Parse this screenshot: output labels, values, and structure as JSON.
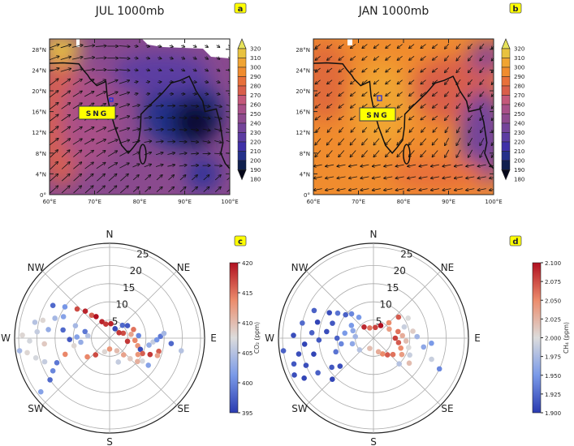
{
  "panels": {
    "a": {
      "title": "JUL 1000mb",
      "letter": "a",
      "site_label": "SNG"
    },
    "b": {
      "title": "JAN 1000mb",
      "letter": "b",
      "site_label": "SNG"
    },
    "c": {
      "letter": "c"
    },
    "d": {
      "letter": "d"
    }
  },
  "map_axes": {
    "lat_ticks": [
      "0°",
      "4°N",
      "8°N",
      "12°N",
      "16°N",
      "20°N",
      "24°N",
      "28°N"
    ],
    "lon_ticks": [
      "60°E",
      "70°E",
      "80°E",
      "90°E",
      "100°E"
    ]
  },
  "map_colorbar": {
    "labels": [
      "320",
      "310",
      "300",
      "290",
      "280",
      "270",
      "260",
      "250",
      "240",
      "230",
      "220",
      "210",
      "200",
      "190",
      "180"
    ],
    "colors": [
      "#e6e25a",
      "#e8c23e",
      "#f0a432",
      "#f08c2e",
      "#e8703a",
      "#d95e4a",
      "#c4587a",
      "#a85088",
      "#8e4a8e",
      "#74449a",
      "#5c3ca2",
      "#4030a8",
      "#24308a",
      "#10204e",
      "#06081a"
    ]
  },
  "chart_data": [
    {
      "type": "scatter",
      "subtype": "polar",
      "panel": "c",
      "directions": [
        "N",
        "NE",
        "E",
        "SE",
        "S",
        "SW",
        "W",
        "NW"
      ],
      "r_ticks": [
        "5",
        "10",
        "15",
        "20",
        "25"
      ],
      "r_max": 26,
      "colorbar": {
        "label": "CO₂ (ppm)",
        "min": 395,
        "max": 420,
        "ticks": [
          "420",
          "415",
          "410",
          "405",
          "400",
          "395"
        ]
      },
      "points_format": [
        "direction_deg",
        "wind_speed",
        "value"
      ],
      "points": [
        [
          312,
          12,
          417
        ],
        [
          318,
          10,
          419
        ],
        [
          322,
          8,
          416
        ],
        [
          328,
          7,
          420
        ],
        [
          335,
          5,
          419
        ],
        [
          345,
          4,
          418
        ],
        [
          5,
          4,
          419
        ],
        [
          30,
          3,
          396
        ],
        [
          45,
          5,
          398
        ],
        [
          55,
          6,
          397
        ],
        [
          70,
          7,
          415
        ],
        [
          80,
          6,
          412
        ],
        [
          85,
          8,
          400
        ],
        [
          95,
          7,
          414
        ],
        [
          100,
          5,
          418
        ],
        [
          105,
          8,
          413
        ],
        [
          110,
          9,
          396
        ],
        [
          115,
          10,
          416
        ],
        [
          100,
          11,
          403
        ],
        [
          95,
          12,
          406
        ],
        [
          92,
          13,
          401
        ],
        [
          88,
          14,
          399
        ],
        [
          85,
          15,
          404
        ],
        [
          105,
          14,
          416
        ],
        [
          112,
          12,
          418
        ],
        [
          120,
          9,
          413
        ],
        [
          125,
          11,
          407
        ],
        [
          130,
          10,
          411
        ],
        [
          95,
          17,
          398
        ],
        [
          100,
          20,
          405
        ],
        [
          250,
          19,
          406
        ],
        [
          255,
          21,
          407
        ],
        [
          260,
          23,
          408
        ],
        [
          262,
          25,
          404
        ],
        [
          265,
          18,
          409
        ],
        [
          268,
          22,
          407
        ],
        [
          272,
          24,
          408
        ],
        [
          275,
          20,
          406
        ],
        [
          278,
          17,
          403
        ],
        [
          282,
          21,
          405
        ],
        [
          285,
          19,
          408
        ],
        [
          290,
          16,
          404
        ],
        [
          295,
          14,
          402
        ],
        [
          250,
          13,
          414
        ],
        [
          245,
          16,
          399
        ],
        [
          240,
          18,
          400
        ],
        [
          235,
          20,
          398
        ],
        [
          232,
          24,
          402
        ],
        [
          300,
          18,
          398
        ],
        [
          305,
          15,
          401
        ],
        [
          258,
          10,
          408
        ],
        [
          262,
          8,
          403
        ],
        [
          268,
          11,
          397
        ],
        [
          272,
          9,
          402
        ],
        [
          276,
          6,
          405
        ],
        [
          230,
          8,
          414
        ],
        [
          220,
          6,
          417
        ],
        [
          200,
          4,
          408
        ],
        [
          180,
          3,
          413
        ],
        [
          150,
          4,
          410
        ],
        [
          140,
          6,
          412
        ],
        [
          135,
          8,
          409
        ],
        [
          160,
          7,
          406
        ],
        [
          125,
          13,
          402
        ],
        [
          110,
          14,
          412
        ],
        [
          70,
          4,
          417
        ],
        [
          60,
          3,
          418
        ],
        [
          280,
          13,
          398
        ],
        [
          285,
          7,
          399
        ],
        [
          290,
          10,
          404
        ]
      ]
    },
    {
      "type": "scatter",
      "subtype": "polar",
      "panel": "d",
      "directions": [
        "N",
        "NE",
        "E",
        "SE",
        "S",
        "SW",
        "W",
        "NW"
      ],
      "r_ticks": [
        "5",
        "10",
        "15",
        "20",
        "25"
      ],
      "r_max": 26,
      "colorbar": {
        "label": "CH₄ (ppm)",
        "min": 1.9,
        "max": 2.1,
        "ticks": [
          "2.100",
          "2.075",
          "2.050",
          "2.025",
          "2.000",
          "1.975",
          "1.950",
          "1.925",
          "1.900"
        ]
      },
      "points_format": [
        "direction_deg",
        "wind_speed",
        "value"
      ],
      "points": [
        [
          245,
          24,
          1.91
        ],
        [
          240,
          22,
          1.905
        ],
        [
          238,
          18,
          1.92
        ],
        [
          248,
          20,
          1.91
        ],
        [
          252,
          23,
          1.915
        ],
        [
          255,
          17,
          1.905
        ],
        [
          258,
          21,
          1.91
        ],
        [
          262,
          25,
          1.92
        ],
        [
          265,
          19,
          1.905
        ],
        [
          268,
          15,
          1.915
        ],
        [
          272,
          22,
          1.91
        ],
        [
          275,
          17,
          1.92
        ],
        [
          278,
          13,
          1.91
        ],
        [
          282,
          20,
          1.925
        ],
        [
          286,
          16,
          1.905
        ],
        [
          290,
          12,
          1.915
        ],
        [
          295,
          18,
          1.92
        ],
        [
          300,
          14,
          1.91
        ],
        [
          305,
          12,
          1.93
        ],
        [
          310,
          10,
          1.92
        ],
        [
          318,
          9,
          1.94
        ],
        [
          325,
          7,
          1.95
        ],
        [
          235,
          14,
          1.915
        ],
        [
          230,
          12,
          1.91
        ],
        [
          225,
          16,
          1.905
        ],
        [
          250,
          11,
          1.93
        ],
        [
          260,
          9,
          1.94
        ],
        [
          270,
          10,
          1.92
        ],
        [
          280,
          8,
          1.95
        ],
        [
          290,
          6,
          1.96
        ],
        [
          320,
          4,
          2.09
        ],
        [
          340,
          3,
          2.06
        ],
        [
          10,
          3,
          2.08
        ],
        [
          30,
          4,
          2.1
        ],
        [
          45,
          6,
          2.05
        ],
        [
          60,
          5,
          2.04
        ],
        [
          75,
          7,
          2.06
        ],
        [
          85,
          8,
          2.03
        ],
        [
          90,
          6,
          2.08
        ],
        [
          95,
          9,
          2.02
        ],
        [
          100,
          7,
          2.07
        ],
        [
          105,
          10,
          2.0
        ],
        [
          110,
          8,
          2.05
        ],
        [
          115,
          11,
          1.99
        ],
        [
          120,
          9,
          2.04
        ],
        [
          125,
          12,
          2.02
        ],
        [
          130,
          7,
          2.06
        ],
        [
          135,
          10,
          1.98
        ],
        [
          140,
          6,
          2.07
        ],
        [
          150,
          5,
          2.05
        ],
        [
          160,
          4,
          2.03
        ],
        [
          100,
          14,
          1.96
        ],
        [
          95,
          16,
          1.95
        ],
        [
          110,
          17,
          1.99
        ],
        [
          115,
          20,
          1.94
        ],
        [
          88,
          12,
          1.97
        ],
        [
          80,
          11,
          2.01
        ],
        [
          70,
          9,
          1.99
        ],
        [
          200,
          3,
          2.02
        ],
        [
          230,
          5,
          1.98
        ],
        [
          255,
          6,
          1.96
        ],
        [
          275,
          5,
          1.97
        ],
        [
          300,
          7,
          1.95
        ],
        [
          60,
          11,
          2.0
        ],
        [
          50,
          9,
          2.07
        ]
      ]
    }
  ]
}
